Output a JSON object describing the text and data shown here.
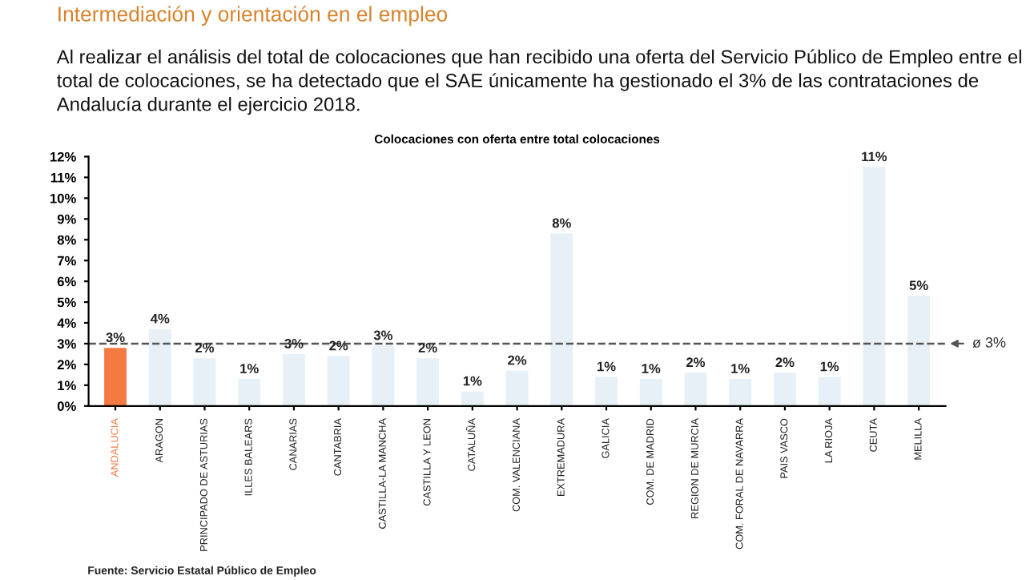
{
  "chart_data": {
    "type": "bar",
    "title": "Colocaciones con oferta entre total colocaciones",
    "categories": [
      "ANDALUCIA",
      "ARAGON",
      "PRINCIPADO DE ASTURIAS",
      "ILLES BALEARS",
      "CANARIAS",
      "CANTABRIA",
      "CASTILLA-LA MANCHA",
      "CASTILLA Y LEON",
      "CATALUÑA",
      "COM. VALENCIANA",
      "EXTREMADURA",
      "GALICIA",
      "COM. DE MADRID",
      "REGION DE MURCIA",
      "COM. FORAL DE NAVARRA",
      "PAIS VASCO",
      "LA RIOJA",
      "CEUTA",
      "MELILLA"
    ],
    "values": [
      2.8,
      3.7,
      2.3,
      1.3,
      2.5,
      2.4,
      2.9,
      2.3,
      0.7,
      1.7,
      8.3,
      1.4,
      1.3,
      1.6,
      1.3,
      1.6,
      1.4,
      11.5,
      5.3
    ],
    "value_labels": [
      "3%",
      "4%",
      "2%",
      "1%",
      "3%",
      "2%",
      "3%",
      "2%",
      "1%",
      "2%",
      "8%",
      "1%",
      "1%",
      "2%",
      "1%",
      "2%",
      "1%",
      "11%",
      "5%"
    ],
    "colors": [
      "#f47a42",
      "#e6f0f6",
      "#e6f0f6",
      "#e6f0f6",
      "#e6f0f6",
      "#e6f0f6",
      "#e6f0f6",
      "#e6f0f6",
      "#e6f0f6",
      "#e6f0f6",
      "#e6f0f6",
      "#e6f0f6",
      "#e6f0f6",
      "#e6f0f6",
      "#e6f0f6",
      "#e6f0f6",
      "#e6f0f6",
      "#e6f0f6",
      "#e6f0f6"
    ],
    "ylim": [
      0,
      12
    ],
    "yticks": [
      {
        "value": 0,
        "label": "0%"
      },
      {
        "value": 1,
        "label": "1%"
      },
      {
        "value": 2,
        "label": "2%"
      },
      {
        "value": 3,
        "label": "3%"
      },
      {
        "value": 4,
        "label": "4%"
      },
      {
        "value": 5,
        "label": "5%"
      },
      {
        "value": 6,
        "label": "6%"
      },
      {
        "value": 7,
        "label": "7%"
      },
      {
        "value": 8,
        "label": "8%"
      },
      {
        "value": 9,
        "label": "9%"
      },
      {
        "value": 10,
        "label": "10%"
      },
      {
        "value": 11,
        "label": "11%"
      },
      {
        "value": 12,
        "label": "12%"
      }
    ],
    "ref_lines": [
      {
        "axis": "y",
        "value": 3,
        "label": "ø 3%",
        "color": "#555555",
        "line_style": "dashed"
      }
    ],
    "grid": false,
    "annotations": [
      "Intermediación y orientación en el empleo",
      "Al realizar el análisis del total de colocaciones que han recibido una oferta del Servicio Público de Empleo entre el total de colocaciones, se ha detectado que el SAE únicamente ha gestionado el 3% de las contrataciones de Andalucía durante el ejercicio 2018.",
      "Fuente: Servicio Estatal Público de Empleo"
    ]
  }
}
